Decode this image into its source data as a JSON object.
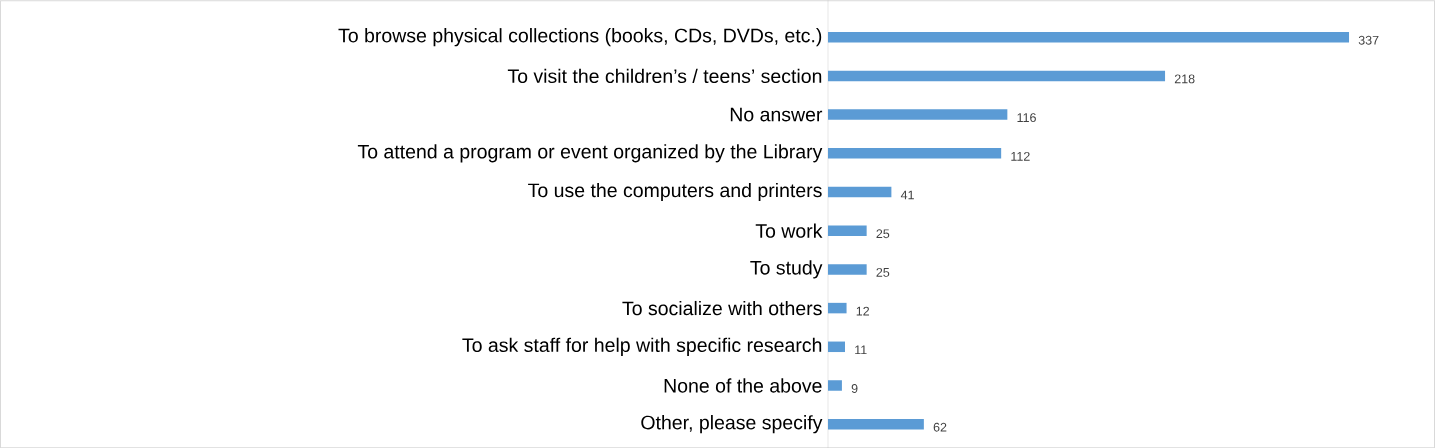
{
  "chart_data": {
    "type": "bar",
    "orientation": "horizontal",
    "categories": [
      "To browse physical collections (books, CDs, DVDs, etc.)",
      "To visit the children’s / teens’ section",
      "No answer",
      "To attend a program or event organized by the Library",
      "To use the computers and printers",
      "To work",
      "To study",
      "To socialize with others",
      "To ask staff for help with specific research",
      "None of the above",
      "Other, please specify"
    ],
    "values": [
      337,
      218,
      116,
      112,
      41,
      25,
      25,
      12,
      11,
      9,
      62
    ],
    "color": "#5b9bd5",
    "data_labels": true
  }
}
